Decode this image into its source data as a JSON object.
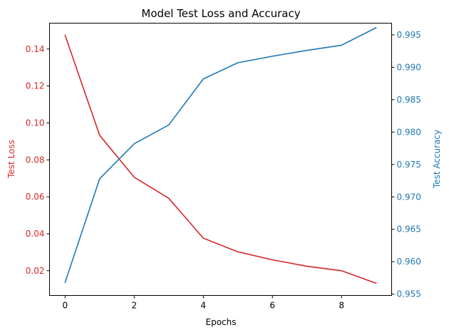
{
  "chart_data": {
    "type": "line",
    "title": "Model Test Loss and Accuracy",
    "xlabel": "Epochs",
    "ylabel_left": "Test Loss",
    "ylabel_right": "Test Accuracy",
    "x": [
      0,
      1,
      2,
      3,
      4,
      5,
      6,
      7,
      8,
      9
    ],
    "xlim": [
      -0.45,
      9.45
    ],
    "xticks": [
      0,
      2,
      4,
      6,
      8
    ],
    "ylim_left": [
      0.0066,
      0.154
    ],
    "ylim_right": [
      0.9548,
      0.9968
    ],
    "yticks_left": [
      0.02,
      0.04,
      0.06,
      0.08,
      0.1,
      0.12,
      0.14
    ],
    "yticks_right": [
      0.955,
      0.96,
      0.965,
      0.97,
      0.975,
      0.98,
      0.985,
      0.99,
      0.995
    ],
    "grid": false,
    "legend": "none",
    "series": [
      {
        "axis": "left",
        "color": "#d62728",
        "values": [
          0.1475,
          0.0933,
          0.0706,
          0.0592,
          0.0376,
          0.0302,
          0.0259,
          0.0224,
          0.02,
          0.0132
        ]
      },
      {
        "axis": "right",
        "color": "#1f77b4",
        "values": [
          0.9568,
          0.9728,
          0.9782,
          0.9811,
          0.9882,
          0.9907,
          0.9917,
          0.9926,
          0.9934,
          0.9961
        ]
      }
    ],
    "colors": {
      "left_axis": "#d62728",
      "right_axis": "#1f77b4",
      "text": "#000000"
    }
  }
}
